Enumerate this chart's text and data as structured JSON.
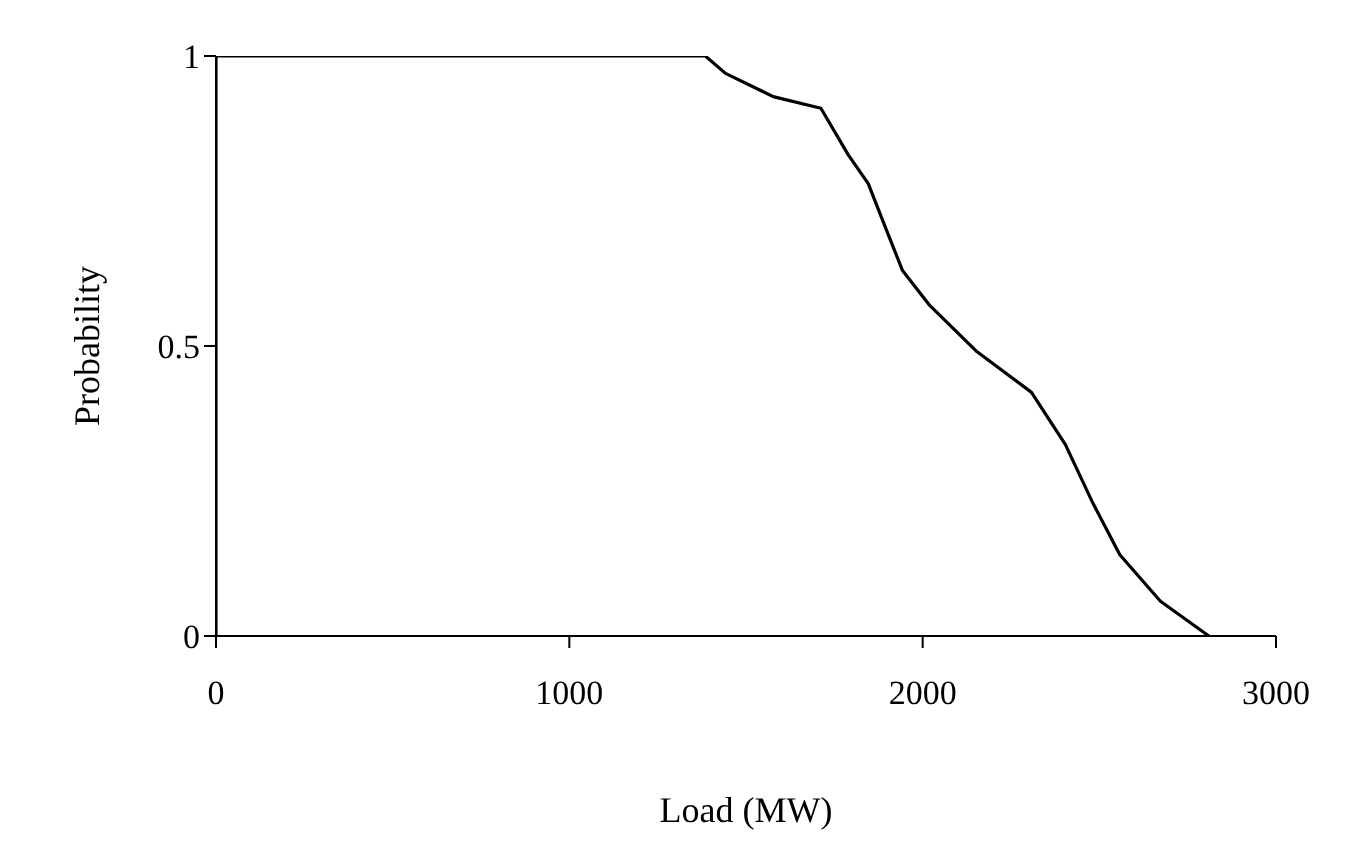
{
  "chart_data": {
    "type": "line",
    "xlabel": "Load (MW)",
    "ylabel": "Probability",
    "x": [
      0,
      0,
      1385,
      1442,
      1577,
      1712,
      1789,
      1846,
      1904,
      1943,
      2020,
      2154,
      2308,
      2404,
      2481,
      2558,
      2673,
      2810
    ],
    "series": [
      {
        "color": "#000000",
        "values": [
          0,
          1,
          1,
          0.97,
          0.93,
          0.91,
          0.83,
          0.78,
          0.69,
          0.63,
          0.57,
          0.49,
          0.42,
          0.33,
          0.23,
          0.14,
          0.06,
          0
        ]
      }
    ],
    "xlim": [
      0,
      3000
    ],
    "xticks": [
      0,
      1000,
      2000,
      3000
    ],
    "ylim": [
      0,
      1
    ],
    "yticks": [
      0,
      0.5,
      1
    ],
    "marker": "none",
    "line_style": "solid"
  }
}
